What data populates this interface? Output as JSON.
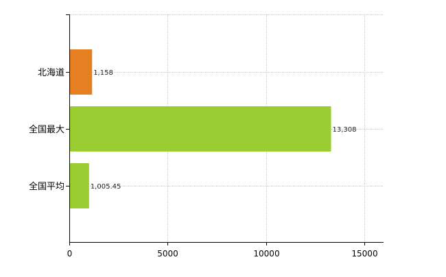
{
  "chart_data": {
    "type": "bar",
    "orientation": "horizontal",
    "title": "",
    "xlabel": "",
    "ylabel": "",
    "categories": [
      "北海道",
      "全国最大",
      "全国平均"
    ],
    "values": [
      1158,
      13308,
      1005.45
    ],
    "value_labels": [
      "1,158",
      "13,308",
      "1,005.45"
    ],
    "bar_colors": [
      "#e67e22",
      "#9acd32",
      "#9acd32"
    ],
    "xlim": [
      0,
      16000
    ],
    "xticks": [
      0,
      5000,
      10000,
      15000
    ],
    "xtick_labels": [
      "0",
      "5000",
      "10000",
      "15000"
    ],
    "grid": true,
    "legend": "none"
  }
}
